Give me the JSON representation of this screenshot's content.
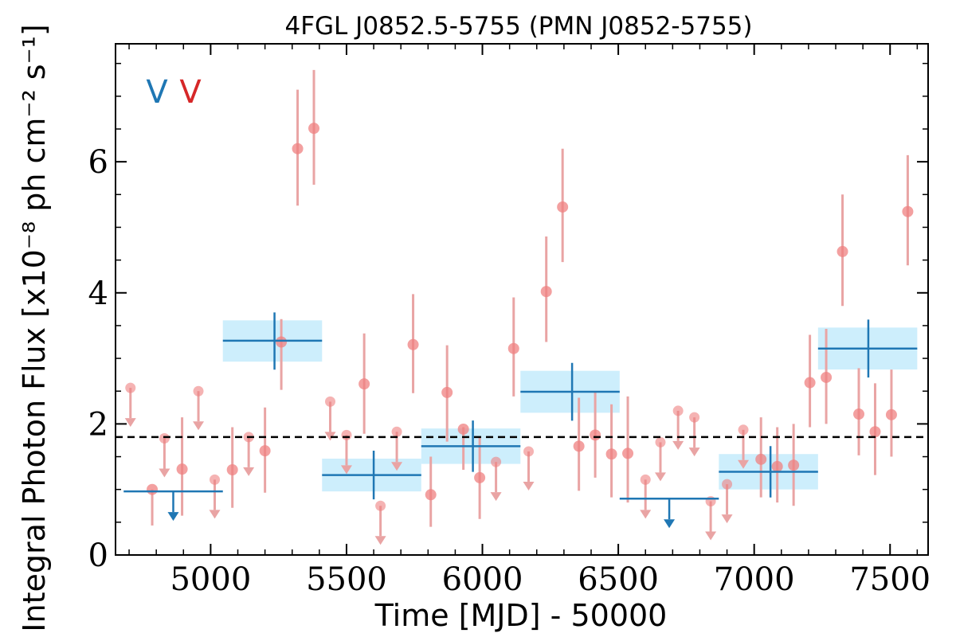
{
  "chart_data": {
    "type": "scatter",
    "title": "4FGL J0852.5-5755 (PMN J0852-5755)",
    "xlabel": "Time [MJD] - 50000",
    "ylabel": "Integral Photon Flux [x10⁻⁸ ph cm⁻² s⁻¹]",
    "xlim": [
      4650,
      7640
    ],
    "ylim": [
      0,
      7.8
    ],
    "xticks": [
      5000,
      5500,
      6000,
      6500,
      7000,
      7500
    ],
    "yticks": [
      0,
      2,
      4,
      6
    ],
    "legend": {
      "position": "top-left",
      "markers": [
        {
          "symbol": "V",
          "color": "#1f77b4"
        },
        {
          "symbol": "V",
          "color": "#d62728"
        }
      ]
    },
    "grid": false,
    "reference_line": {
      "y": 1.8,
      "style": "dashed",
      "color": "#000000"
    },
    "colors": {
      "bins": "#1f77b4",
      "bin_band": "#cdeefc",
      "points": "#ef8080",
      "errbars": "#e9a4a4",
      "upper_limits": "#e9a4a4"
    },
    "bins": [
      {
        "x_start": 4680,
        "x_end": 5045,
        "y": 0.97,
        "upper_limit": true
      },
      {
        "x_start": 5045,
        "x_end": 5410,
        "y": 3.27,
        "y_low": 2.95,
        "y_high": 3.58,
        "x_center": 5235
      },
      {
        "x_start": 5410,
        "x_end": 5775,
        "y": 1.22,
        "y_low": 0.97,
        "y_high": 1.47,
        "x_center": 5600
      },
      {
        "x_start": 5775,
        "x_end": 6140,
        "y": 1.66,
        "y_low": 1.39,
        "y_high": 1.93,
        "x_center": 5965
      },
      {
        "x_start": 6140,
        "x_end": 6505,
        "y": 2.49,
        "y_low": 2.17,
        "y_high": 2.81,
        "x_center": 6330
      },
      {
        "x_start": 6505,
        "x_end": 6870,
        "y": 0.86,
        "upper_limit": true
      },
      {
        "x_start": 6870,
        "x_end": 7235,
        "y": 1.27,
        "y_low": 1.0,
        "y_high": 1.54,
        "x_center": 7060
      },
      {
        "x_start": 7235,
        "x_end": 7600,
        "y": 3.15,
        "y_low": 2.83,
        "y_high": 3.47,
        "x_center": 7420
      }
    ],
    "points": [
      {
        "x": 4785,
        "y": 1.0,
        "y_low": 0.45,
        "y_high": 1.0
      },
      {
        "x": 4895,
        "y": 1.31,
        "y_low": 0.6,
        "y_high": 2.1
      },
      {
        "x": 5080,
        "y": 1.3,
        "y_low": 0.72,
        "y_high": 1.95
      },
      {
        "x": 5200,
        "y": 1.59,
        "y_low": 0.95,
        "y_high": 2.25
      },
      {
        "x": 5260,
        "y": 3.25,
        "y_low": 2.52,
        "y_high": 3.6
      },
      {
        "x": 5320,
        "y": 6.2,
        "y_low": 5.33,
        "y_high": 7.1
      },
      {
        "x": 5380,
        "y": 6.51,
        "y_low": 5.65,
        "y_high": 7.4
      },
      {
        "x": 5565,
        "y": 2.61,
        "y_low": 1.85,
        "y_high": 3.38
      },
      {
        "x": 5745,
        "y": 3.21,
        "y_low": 2.47,
        "y_high": 3.98
      },
      {
        "x": 5810,
        "y": 0.92,
        "y_low": 0.43,
        "y_high": 1.5
      },
      {
        "x": 5870,
        "y": 2.48,
        "y_low": 1.73,
        "y_high": 3.2
      },
      {
        "x": 5930,
        "y": 1.92,
        "y_low": 1.3,
        "y_high": 1.95
      },
      {
        "x": 5990,
        "y": 1.18,
        "y_low": 0.55,
        "y_high": 1.8
      },
      {
        "x": 6115,
        "y": 3.15,
        "y_low": 2.42,
        "y_high": 3.93
      },
      {
        "x": 6235,
        "y": 4.02,
        "y_low": 3.25,
        "y_high": 4.86
      },
      {
        "x": 6295,
        "y": 5.31,
        "y_low": 4.47,
        "y_high": 6.2
      },
      {
        "x": 6355,
        "y": 1.66,
        "y_low": 0.98,
        "y_high": 2.4
      },
      {
        "x": 6415,
        "y": 1.83,
        "y_low": 1.18,
        "y_high": 2.5
      },
      {
        "x": 6475,
        "y": 1.54,
        "y_low": 0.88,
        "y_high": 2.3
      },
      {
        "x": 6535,
        "y": 1.55,
        "y_low": 0.8,
        "y_high": 2.42
      },
      {
        "x": 7025,
        "y": 1.46,
        "y_low": 0.88,
        "y_high": 2.1
      },
      {
        "x": 7085,
        "y": 1.35,
        "y_low": 0.8,
        "y_high": 1.95
      },
      {
        "x": 7145,
        "y": 1.37,
        "y_low": 0.75,
        "y_high": 2.0
      },
      {
        "x": 7205,
        "y": 2.63,
        "y_low": 1.95,
        "y_high": 3.36
      },
      {
        "x": 7265,
        "y": 2.71,
        "y_low": 2.0,
        "y_high": 3.45
      },
      {
        "x": 7325,
        "y": 4.63,
        "y_low": 3.8,
        "y_high": 5.5
      },
      {
        "x": 7385,
        "y": 2.15,
        "y_low": 1.52,
        "y_high": 2.85
      },
      {
        "x": 7445,
        "y": 1.88,
        "y_low": 1.22,
        "y_high": 2.62
      },
      {
        "x": 7505,
        "y": 2.14,
        "y_low": 1.5,
        "y_high": 2.83
      },
      {
        "x": 7565,
        "y": 5.24,
        "y_low": 4.42,
        "y_high": 6.1
      }
    ],
    "upper_limits": [
      {
        "x": 4705,
        "y": 2.55
      },
      {
        "x": 4830,
        "y": 1.78
      },
      {
        "x": 4955,
        "y": 2.5
      },
      {
        "x": 5015,
        "y": 1.15
      },
      {
        "x": 5140,
        "y": 1.8
      },
      {
        "x": 5440,
        "y": 2.34
      },
      {
        "x": 5500,
        "y": 1.83
      },
      {
        "x": 5625,
        "y": 0.75
      },
      {
        "x": 5685,
        "y": 1.88
      },
      {
        "x": 6050,
        "y": 1.42
      },
      {
        "x": 6170,
        "y": 1.58
      },
      {
        "x": 6600,
        "y": 1.15
      },
      {
        "x": 6655,
        "y": 1.72
      },
      {
        "x": 6720,
        "y": 2.2
      },
      {
        "x": 6780,
        "y": 2.1
      },
      {
        "x": 6840,
        "y": 0.82
      },
      {
        "x": 6900,
        "y": 1.08
      },
      {
        "x": 6960,
        "y": 1.91
      }
    ]
  }
}
